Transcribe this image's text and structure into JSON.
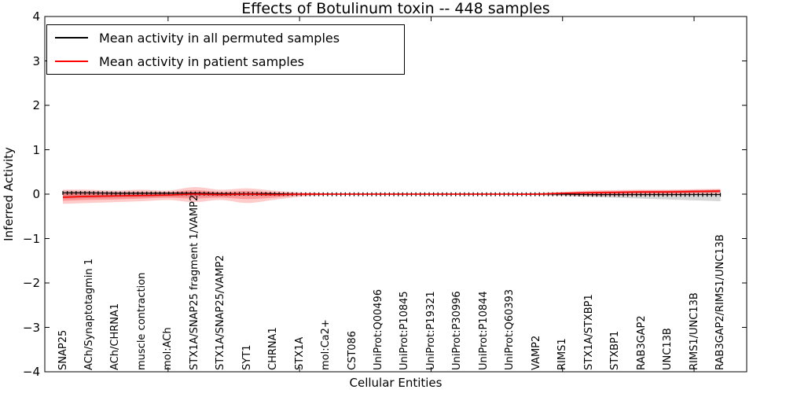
{
  "figure": {
    "background": "#ffffff",
    "axes_color": "#000000"
  },
  "legend": {
    "position": "upper left",
    "items": [
      {
        "label": "Mean activity in all permuted samples",
        "color": "#000000"
      },
      {
        "label": "Mean activity in patient samples",
        "color": "#ff0000"
      }
    ]
  },
  "chart_data": {
    "type": "line",
    "title": "Effects of Botulinum toxin -- 448 samples",
    "xlabel": "Cellular Entities",
    "ylabel": "Inferred Activity",
    "ylim": [
      -4,
      4
    ],
    "ytick_labels": [
      "4",
      "3",
      "2",
      "1",
      "0",
      "−1",
      "−2",
      "−3",
      "−4"
    ],
    "ytick_values": [
      4,
      3,
      2,
      1,
      0,
      -1,
      -2,
      -3,
      -4
    ],
    "xtick_mark_indices": [
      4,
      9,
      14,
      19,
      24
    ],
    "grid": false,
    "legend_position": "upper left",
    "categories": [
      "SNAP25",
      "ACh/Synaptotagmin 1",
      "ACh/CHRNA1",
      "muscle contraction",
      "mol:ACh",
      "STX1A/SNAP25 fragment 1/VAMP2",
      "STX1A/SNAP25/VAMP2",
      "SYT1",
      "CHRNA1",
      "STX1A",
      "mol:Ca2+",
      "CST086",
      "UniProt:Q00496",
      "UniProt:P10845",
      "UniProt:P19321",
      "UniProt:P30996",
      "UniProt:P10844",
      "UniProt:Q60393",
      "VAMP2",
      "RIMS1",
      "STX1A/STXBP1",
      "STXBP1",
      "RAB3GAP2",
      "UNC13B",
      "RIMS1/UNC13B",
      "RAB3GAP2/RIMS1/UNC13B"
    ],
    "series": [
      {
        "name": "Mean activity in all permuted samples",
        "color": "#000000",
        "width": 1.2,
        "values": [
          0.03,
          0.03,
          0.02,
          0.02,
          0.02,
          0.02,
          0.01,
          0.01,
          0.01,
          0.0,
          0.0,
          0.0,
          0.0,
          0.0,
          0.0,
          0.0,
          0.0,
          0.0,
          0.0,
          0.0,
          -0.01,
          -0.01,
          -0.01,
          -0.01,
          -0.01,
          -0.01
        ]
      },
      {
        "name": "Mean activity in patient samples",
        "color": "#ff0000",
        "width": 1.6,
        "values": [
          -0.07,
          -0.05,
          -0.04,
          -0.03,
          -0.02,
          0.0,
          -0.01,
          0.0,
          -0.01,
          0.0,
          0.0,
          0.0,
          0.0,
          0.0,
          0.0,
          0.0,
          0.0,
          0.0,
          0.0,
          0.02,
          0.03,
          0.04,
          0.05,
          0.05,
          0.06,
          0.07
        ]
      }
    ],
    "bands": [
      {
        "name": "permuted-samples-spread",
        "color": "rgba(120,120,120,0.30)",
        "upper": [
          0.08,
          0.07,
          0.06,
          0.06,
          0.05,
          0.05,
          0.04,
          0.04,
          0.03,
          0.02,
          0.01,
          0.01,
          0.01,
          0.01,
          0.01,
          0.01,
          0.01,
          0.01,
          0.02,
          0.03,
          0.05,
          0.06,
          0.07,
          0.08,
          0.09,
          0.1
        ],
        "lower": [
          -0.1,
          -0.09,
          -0.08,
          -0.07,
          -0.06,
          -0.05,
          -0.05,
          -0.04,
          -0.04,
          -0.02,
          -0.01,
          -0.01,
          -0.01,
          -0.01,
          -0.01,
          -0.01,
          -0.01,
          -0.01,
          -0.02,
          -0.04,
          -0.06,
          -0.08,
          -0.1,
          -0.12,
          -0.14,
          -0.16
        ]
      },
      {
        "name": "patient-samples-spread-outer",
        "color": "rgba(255,0,0,0.20)",
        "upper": [
          0.1,
          0.1,
          0.08,
          0.1,
          0.08,
          0.16,
          0.1,
          0.13,
          0.08,
          0.04,
          0.02,
          0.01,
          0.01,
          0.01,
          0.01,
          0.01,
          0.01,
          0.01,
          0.02,
          0.05,
          0.08,
          0.09,
          0.1,
          0.1,
          0.11,
          0.12
        ],
        "lower": [
          -0.22,
          -0.2,
          -0.18,
          -0.16,
          -0.13,
          -0.18,
          -0.13,
          -0.2,
          -0.13,
          -0.06,
          -0.02,
          -0.01,
          -0.01,
          -0.01,
          -0.01,
          -0.01,
          -0.01,
          -0.01,
          -0.02,
          -0.03,
          -0.04,
          -0.04,
          -0.03,
          -0.03,
          -0.02,
          -0.01
        ]
      },
      {
        "name": "patient-samples-spread-inner",
        "color": "rgba(255,0,0,0.25)",
        "upper": [
          0.02,
          0.03,
          0.03,
          0.04,
          0.04,
          0.09,
          0.05,
          0.07,
          0.04,
          0.02,
          0.01,
          0.01,
          0.01,
          0.01,
          0.01,
          0.01,
          0.01,
          0.01,
          0.01,
          0.04,
          0.06,
          0.07,
          0.08,
          0.08,
          0.09,
          0.1
        ],
        "lower": [
          -0.15,
          -0.13,
          -0.12,
          -0.1,
          -0.08,
          -0.1,
          -0.08,
          -0.11,
          -0.08,
          -0.03,
          -0.01,
          -0.01,
          -0.01,
          -0.01,
          -0.01,
          -0.01,
          -0.01,
          -0.01,
          -0.01,
          -0.01,
          -0.01,
          0.0,
          0.01,
          0.01,
          0.02,
          0.03
        ]
      }
    ]
  }
}
